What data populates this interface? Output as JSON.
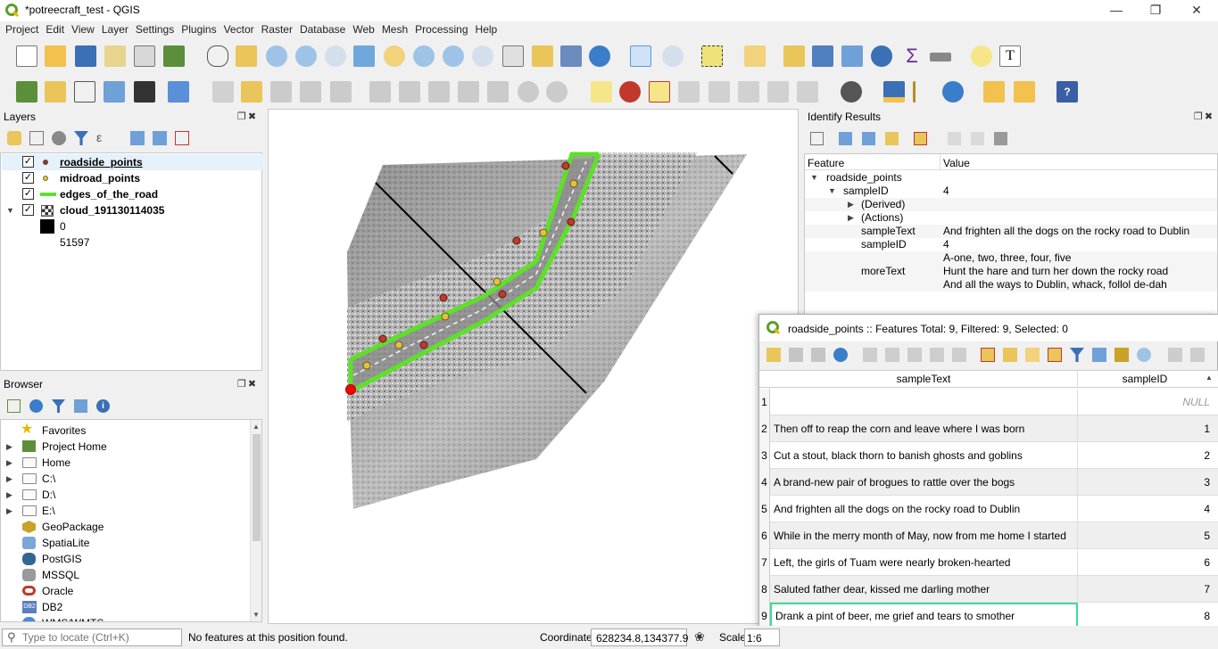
{
  "window": {
    "title": "*potreecraft_test - QGIS"
  },
  "menu": [
    "Project",
    "Edit",
    "View",
    "Layer",
    "Settings",
    "Plugins",
    "Vector",
    "Raster",
    "Database",
    "Web",
    "Mesh",
    "Processing",
    "Help"
  ],
  "layers_panel": {
    "title": "Layers",
    "layers": [
      {
        "name": "roadside_points",
        "symbol": "point-dark",
        "checked": true
      },
      {
        "name": "midroad_points",
        "symbol": "point-yellow",
        "checked": true
      },
      {
        "name": "edges_of_the_road",
        "symbol": "line-green",
        "checked": true
      },
      {
        "name": "cloud_191130114035",
        "symbol": "raster",
        "checked": true
      }
    ],
    "legend": {
      "min": "0",
      "max": "51597"
    }
  },
  "browser_panel": {
    "title": "Browser",
    "items": [
      "Favorites",
      "Project Home",
      "Home",
      "C:\\",
      "D:\\",
      "E:\\",
      "GeoPackage",
      "SpatiaLite",
      "PostGIS",
      "MSSQL",
      "Oracle",
      "DB2",
      "WMS/WMTS"
    ]
  },
  "identify": {
    "title": "Identify Results",
    "col_feature": "Feature",
    "col_value": "Value",
    "layer": "roadside_points",
    "id_label": "sampleID",
    "id_value": "4",
    "derived": "(Derived)",
    "actions": "(Actions)",
    "fields": [
      {
        "name": "sampleText",
        "value": "And frighten all the dogs on the rocky road to Dublin"
      },
      {
        "name": "sampleID",
        "value": "4"
      }
    ],
    "moretext_label": "moreText",
    "moretext_lines": [
      "A-one, two, three, four, five",
      "Hunt the hare and turn her down the rocky road",
      "And all the ways to Dublin, whack, follol de-dah"
    ]
  },
  "attribute_table": {
    "title": "roadside_points :: Features Total: 9, Filtered: 9, Selected: 0",
    "columns": [
      "sampleText",
      "sampleID"
    ],
    "rows": [
      {
        "n": "1",
        "text": "",
        "id": "NULL"
      },
      {
        "n": "2",
        "text": "Then off to reap the corn and leave where I was born",
        "id": "1"
      },
      {
        "n": "3",
        "text": "Cut a stout, black thorn to banish ghosts and goblins",
        "id": "2"
      },
      {
        "n": "4",
        "text": "A brand-new pair of brogues to rattle over the bogs",
        "id": "3"
      },
      {
        "n": "5",
        "text": "And frighten all the dogs on the rocky road to Dublin",
        "id": "4"
      },
      {
        "n": "6",
        "text": "While in the merry month of May, now from me home I started",
        "id": "5"
      },
      {
        "n": "7",
        "text": "Left, the girls of Tuam were nearly broken-hearted",
        "id": "6"
      },
      {
        "n": "8",
        "text": "Saluted father dear, kissed me darling mother",
        "id": "7"
      },
      {
        "n": "9",
        "text": "Drank a pint of beer, me grief and tears to smother",
        "id": "8"
      }
    ]
  },
  "status": {
    "locator_placeholder": "Type to locate (Ctrl+K)",
    "message": "No features at this position found.",
    "coord_label": "Coordinate",
    "coord_value": "628234.8,134377.9",
    "scale_label": "Scale",
    "scale_value": "1:6"
  }
}
